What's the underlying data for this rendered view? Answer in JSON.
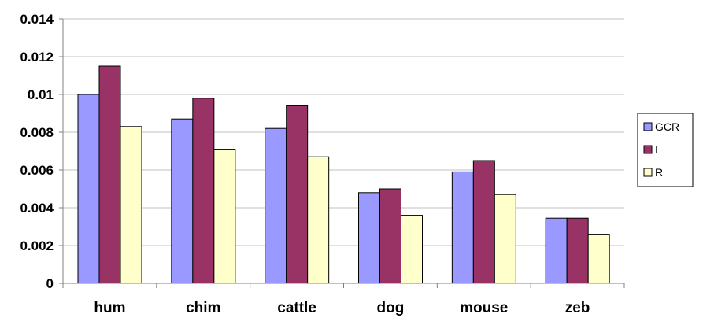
{
  "chart_data": {
    "type": "bar",
    "categories": [
      "hum",
      "chim",
      "cattle",
      "dog",
      "mouse",
      "zeb"
    ],
    "series": [
      {
        "name": "GCR",
        "color": "#9999FF",
        "values": [
          0.01,
          0.0087,
          0.0082,
          0.0048,
          0.0059,
          0.00345
        ]
      },
      {
        "name": "I",
        "color": "#993366",
        "values": [
          0.0115,
          0.0098,
          0.0094,
          0.005,
          0.0065,
          0.00345
        ]
      },
      {
        "name": "R",
        "color": "#FFFFCC",
        "values": [
          0.0083,
          0.0071,
          0.0067,
          0.0036,
          0.0047,
          0.0026
        ]
      }
    ],
    "y_ticks": [
      "0",
      "0.002",
      "0.004",
      "0.006",
      "0.008",
      "0.01",
      "0.012",
      "0.014"
    ],
    "ylim": [
      0,
      0.014
    ],
    "grid": true,
    "legend": "right",
    "title": "",
    "xlabel": "",
    "ylabel": ""
  }
}
